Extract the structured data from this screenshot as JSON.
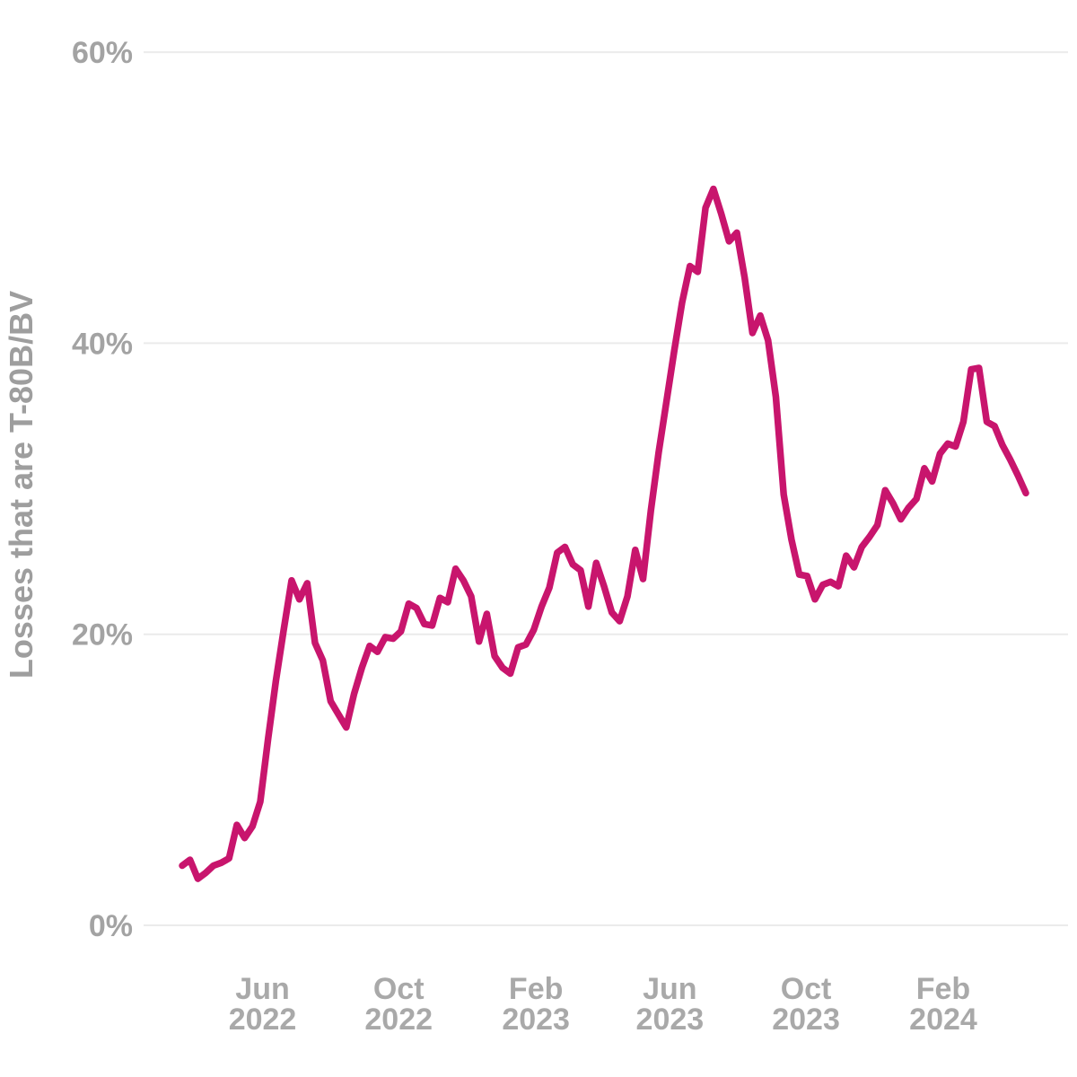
{
  "page": {
    "background": "#ffffff"
  },
  "colors": {
    "line": "#C8156D",
    "grid": "#ebebeb",
    "tick_label": "#a3a3a3",
    "axis_title": "#9e9e9e"
  },
  "chart_data": {
    "type": "line",
    "title": "",
    "subtitle": "",
    "xlabel": "",
    "ylabel": "Losses that are T-80B/BV",
    "ylim": [
      0,
      60
    ],
    "grid": "horizontal-only",
    "legend": "none",
    "yticks": [
      {
        "value": 0,
        "label": "0%"
      },
      {
        "value": 20,
        "label": "20%"
      },
      {
        "value": 40,
        "label": "40%"
      },
      {
        "value": 60,
        "label": "60%"
      }
    ],
    "xticks": [
      {
        "date": "2022-06-01",
        "month": "Jun",
        "year": "2022"
      },
      {
        "date": "2022-10-01",
        "month": "Oct",
        "year": "2022"
      },
      {
        "date": "2023-02-01",
        "month": "Feb",
        "year": "2023"
      },
      {
        "date": "2023-06-01",
        "month": "Jun",
        "year": "2023"
      },
      {
        "date": "2023-10-01",
        "month": "Oct",
        "year": "2023"
      },
      {
        "date": "2024-02-01",
        "month": "Feb",
        "year": "2024"
      }
    ],
    "series": [
      {
        "name": "Losses that are T-80B/BV",
        "color": "#C8156D",
        "unit": "%",
        "cadence": "weekly",
        "dates": [
          "2022-03-21",
          "2022-03-28",
          "2022-04-04",
          "2022-04-11",
          "2022-04-18",
          "2022-04-25",
          "2022-05-02",
          "2022-05-09",
          "2022-05-16",
          "2022-05-23",
          "2022-05-30",
          "2022-06-06",
          "2022-06-13",
          "2022-06-20",
          "2022-06-27",
          "2022-07-04",
          "2022-07-11",
          "2022-07-18",
          "2022-07-25",
          "2022-08-01",
          "2022-08-08",
          "2022-08-15",
          "2022-08-22",
          "2022-08-29",
          "2022-09-05",
          "2022-09-12",
          "2022-09-19",
          "2022-09-26",
          "2022-10-03",
          "2022-10-10",
          "2022-10-17",
          "2022-10-24",
          "2022-10-31",
          "2022-11-07",
          "2022-11-14",
          "2022-11-21",
          "2022-11-28",
          "2022-12-05",
          "2022-12-12",
          "2022-12-19",
          "2022-12-26",
          "2023-01-02",
          "2023-01-09",
          "2023-01-16",
          "2023-01-23",
          "2023-01-30",
          "2023-02-06",
          "2023-02-13",
          "2023-02-20",
          "2023-02-27",
          "2023-03-06",
          "2023-03-13",
          "2023-03-20",
          "2023-03-27",
          "2023-04-03",
          "2023-04-10",
          "2023-04-17",
          "2023-04-24",
          "2023-05-01",
          "2023-05-08",
          "2023-05-15",
          "2023-05-22",
          "2023-05-29",
          "2023-06-05",
          "2023-06-12",
          "2023-06-19",
          "2023-06-26",
          "2023-07-03",
          "2023-07-10",
          "2023-07-17",
          "2023-07-24",
          "2023-07-31",
          "2023-08-07",
          "2023-08-14",
          "2023-08-21",
          "2023-08-28",
          "2023-09-04",
          "2023-09-11",
          "2023-09-18",
          "2023-09-25",
          "2023-10-02",
          "2023-10-09",
          "2023-10-16",
          "2023-10-23",
          "2023-10-30",
          "2023-11-06",
          "2023-11-13",
          "2023-11-20",
          "2023-11-27",
          "2023-12-04",
          "2023-12-11",
          "2023-12-18",
          "2023-12-25",
          "2024-01-01",
          "2024-01-08",
          "2024-01-15",
          "2024-01-22",
          "2024-01-29",
          "2024-02-05",
          "2024-02-12",
          "2024-02-19",
          "2024-02-26",
          "2024-03-04",
          "2024-03-11",
          "2024-03-18",
          "2024-03-25",
          "2024-04-01",
          "2024-04-08",
          "2024-04-15"
        ],
        "values": [
          4.1,
          4.5,
          3.2,
          3.6,
          4.1,
          4.3,
          4.6,
          6.9,
          6.0,
          6.8,
          8.5,
          12.8,
          16.8,
          20.3,
          23.7,
          22.4,
          23.5,
          19.4,
          18.2,
          15.4,
          14.5,
          13.6,
          15.9,
          17.7,
          19.2,
          18.8,
          19.8,
          19.7,
          20.2,
          22.1,
          21.8,
          20.7,
          20.6,
          22.5,
          22.2,
          24.5,
          23.7,
          22.6,
          19.5,
          21.4,
          18.5,
          17.7,
          17.3,
          19.1,
          19.3,
          20.3,
          21.9,
          23.2,
          25.6,
          26.0,
          24.8,
          24.4,
          21.9,
          24.9,
          23.3,
          21.5,
          20.9,
          22.6,
          25.8,
          23.8,
          28.5,
          32.5,
          36.0,
          39.5,
          42.8,
          45.3,
          44.9,
          49.3,
          50.6,
          48.9,
          47.0,
          47.6,
          44.5,
          40.7,
          41.9,
          40.2,
          36.3,
          29.6,
          26.5,
          24.1,
          24.0,
          22.4,
          23.4,
          23.6,
          23.3,
          25.4,
          24.6,
          26.0,
          26.7,
          27.5,
          29.9,
          29.0,
          27.9,
          28.7,
          29.3,
          31.4,
          30.5,
          32.4,
          33.1,
          32.9,
          34.6,
          38.2,
          38.3,
          34.6,
          34.3,
          33.0,
          32.0,
          30.9,
          29.7
        ]
      }
    ]
  }
}
